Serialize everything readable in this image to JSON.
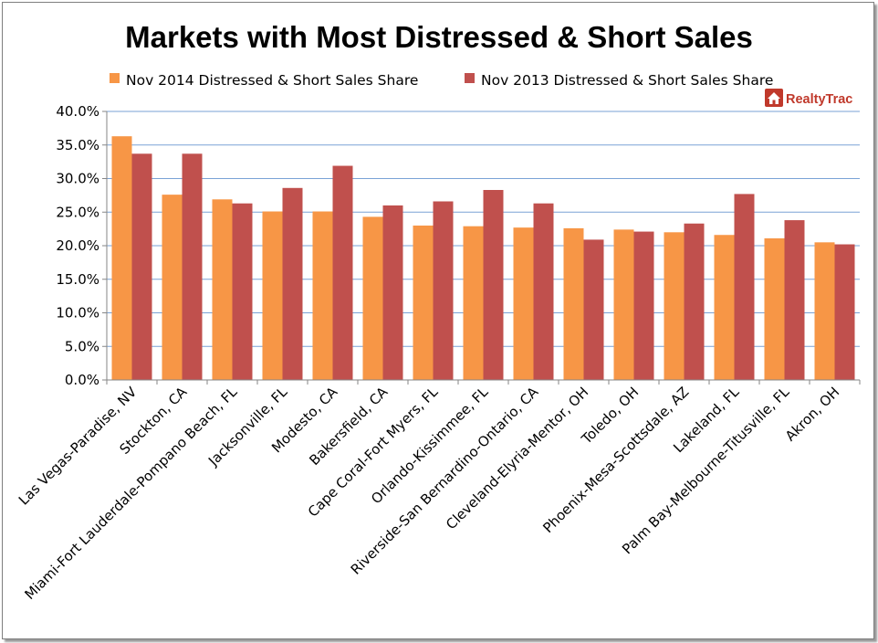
{
  "chart_data": {
    "type": "bar",
    "title": "Markets with Most Distressed & Short Sales",
    "categories": [
      "Las Vegas-Paradise, NV",
      "Stockton, CA",
      "Miami-Fort Lauderdale-Pompano Beach, FL",
      "Jacksonville, FL",
      "Modesto, CA",
      "Bakersfield, CA",
      "Cape Coral-Fort Myers, FL",
      "Orlando-Kissimmee, FL",
      "Riverside-San Bernardino-Ontario, CA",
      "Cleveland-Elyria-Mentor, OH",
      "Toledo, OH",
      "Phoenix-Mesa-Scottsdale, AZ",
      "Lakeland, FL",
      "Palm Bay-Melbourne-Titusville, FL",
      "Akron, OH"
    ],
    "series": [
      {
        "name": "Nov 2014 Distressed & Short Sales Share",
        "color": "#f79646",
        "values": [
          36.3,
          27.6,
          26.9,
          25.1,
          25.1,
          24.3,
          23.0,
          22.9,
          22.7,
          22.6,
          22.4,
          22.0,
          21.6,
          21.1,
          20.5
        ]
      },
      {
        "name": "Nov 2013 Distressed & Short Sales Share",
        "color": "#c0504d",
        "values": [
          33.7,
          33.7,
          26.3,
          28.6,
          31.9,
          26.0,
          26.6,
          28.3,
          26.3,
          20.9,
          22.1,
          23.3,
          27.7,
          23.8,
          20.2
        ]
      }
    ],
    "ylim": [
      0,
      40
    ],
    "yticks": [
      "0.0%",
      "5.0%",
      "10.0%",
      "15.0%",
      "20.0%",
      "25.0%",
      "30.0%",
      "35.0%",
      "40.0%"
    ],
    "grid": true,
    "legend": "top",
    "xlabel": "",
    "ylabel": ""
  },
  "logo": {
    "text_part1": "Realty",
    "text_part2": "Trac",
    "color": "#c0392b",
    "icon": "house-icon"
  }
}
